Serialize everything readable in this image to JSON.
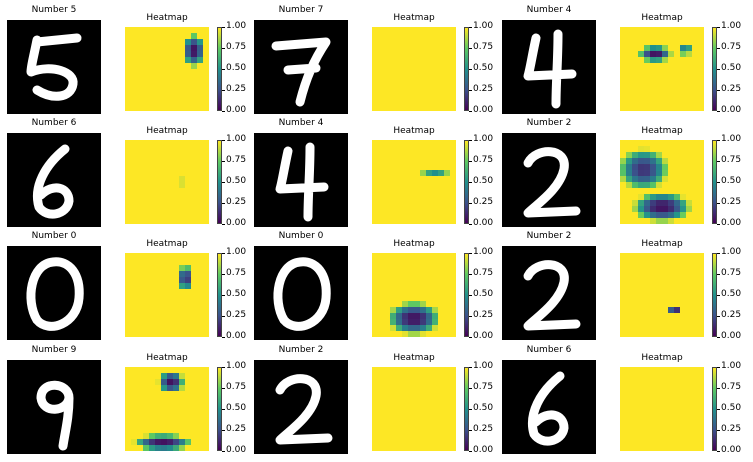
{
  "chart_data": {
    "type": "heatmap",
    "colormap": [
      "#440154",
      "#3b528b",
      "#21918c",
      "#5ec962",
      "#fde725"
    ],
    "colorbar_ticks": [
      "1.00",
      "0.75",
      "0.50",
      "0.25",
      "0.00"
    ],
    "colorbar_range": [
      0,
      1
    ],
    "panels": [
      {
        "digit_title": "Number 5",
        "heat_title": "Heatmap",
        "digit": "5",
        "blobs": [
          {
            "cx": 0.82,
            "cy": 0.28,
            "rx": 0.14,
            "ry": 0.2,
            "v": 0.05
          }
        ]
      },
      {
        "digit_title": "Number 7",
        "heat_title": "Heatmap",
        "digit": "7",
        "blobs": []
      },
      {
        "digit_title": "Number 4",
        "heat_title": "Heatmap",
        "digit": "4",
        "blobs": [
          {
            "cx": 0.42,
            "cy": 0.32,
            "rx": 0.2,
            "ry": 0.1,
            "v": 0.05
          },
          {
            "cx": 0.78,
            "cy": 0.28,
            "rx": 0.09,
            "ry": 0.05,
            "v": 0.05
          }
        ]
      },
      {
        "digit_title": "Number 6",
        "heat_title": "Heatmap",
        "digit": "6",
        "blobs": [
          {
            "cx": 0.68,
            "cy": 0.5,
            "rx": 0.03,
            "ry": 0.04,
            "v": 0.75
          }
        ]
      },
      {
        "digit_title": "Number 4",
        "heat_title": "Heatmap",
        "digit": "4",
        "blobs": [
          {
            "cx": 0.75,
            "cy": 0.38,
            "rx": 0.18,
            "ry": 0.04,
            "v": 0.45
          }
        ]
      },
      {
        "digit_title": "Number 2",
        "heat_title": "Heatmap",
        "digit": "2",
        "blobs": [
          {
            "cx": 0.28,
            "cy": 0.35,
            "rx": 0.3,
            "ry": 0.25,
            "v": 0.15
          },
          {
            "cx": 0.5,
            "cy": 0.8,
            "rx": 0.35,
            "ry": 0.18,
            "v": 0.05
          }
        ]
      },
      {
        "digit_title": "Number 0",
        "heat_title": "Heatmap",
        "digit": "0",
        "blobs": [
          {
            "cx": 0.72,
            "cy": 0.3,
            "rx": 0.09,
            "ry": 0.16,
            "v": 0.1
          }
        ]
      },
      {
        "digit_title": "Number 0",
        "heat_title": "Heatmap",
        "digit": "0",
        "blobs": [
          {
            "cx": 0.5,
            "cy": 0.78,
            "rx": 0.32,
            "ry": 0.2,
            "v": 0.05
          }
        ]
      },
      {
        "digit_title": "Number 2",
        "heat_title": "Heatmap",
        "digit": "2",
        "blobs": [
          {
            "cx": 0.65,
            "cy": 0.68,
            "rx": 0.08,
            "ry": 0.07,
            "v": 0.05
          }
        ]
      },
      {
        "digit_title": "Number 9",
        "heat_title": "Heatmap",
        "digit": "9",
        "blobs": [
          {
            "cx": 0.55,
            "cy": 0.18,
            "rx": 0.16,
            "ry": 0.14,
            "v": 0.05
          },
          {
            "cx": 0.45,
            "cy": 0.9,
            "rx": 0.35,
            "ry": 0.1,
            "v": 0.05
          }
        ]
      },
      {
        "digit_title": "Number 2",
        "heat_title": "Heatmap",
        "digit": "2",
        "blobs": []
      },
      {
        "digit_title": "Number 6",
        "heat_title": "Heatmap",
        "digit": "6",
        "blobs": []
      }
    ]
  }
}
